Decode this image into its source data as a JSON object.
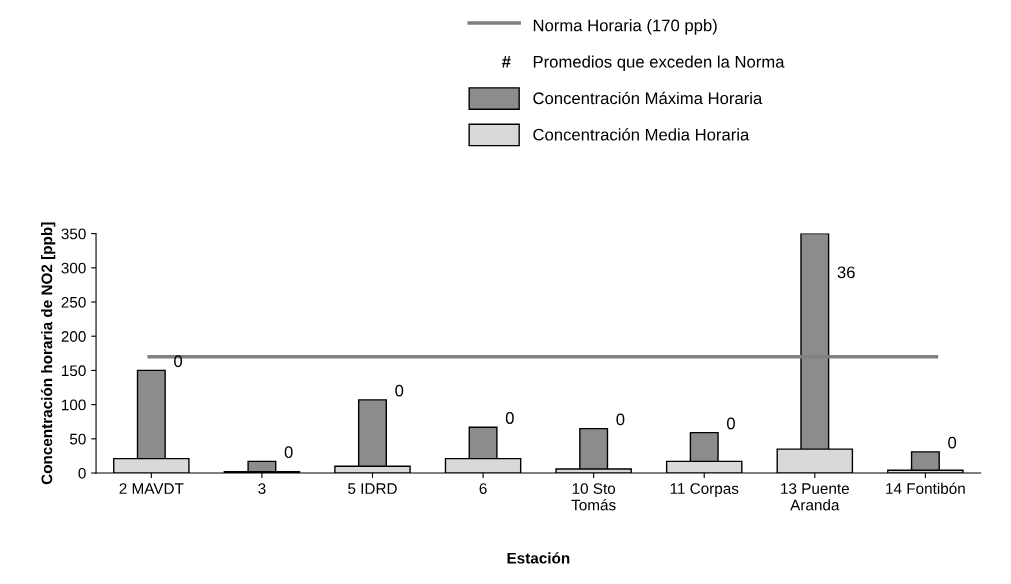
{
  "chart_data": {
    "type": "bar",
    "xlabel": "Estación",
    "ylabel": "Concentración horaria de NO2 [ppb]",
    "categories": [
      "2 MAVDT",
      "3",
      "5 IDRD",
      "6",
      "10 Sto\nTomás",
      "11 Corpas",
      "13 Puente\nAranda",
      "14 Fontibón"
    ],
    "series": [
      {
        "name": "Concentración Máxima Horaria",
        "color": "#8c8c8c",
        "values": [
          150,
          17,
          107,
          67,
          65,
          59,
          350,
          31
        ]
      },
      {
        "name": "Concentración Media Horaria",
        "color": "#d9d9d9",
        "values": [
          21,
          2,
          10,
          21,
          6,
          17,
          35,
          4
        ]
      }
    ],
    "ref_lines": [
      {
        "axis": "y",
        "value": 170,
        "label": "Norma Horaria (170 ppb)",
        "color": "#808080"
      }
    ],
    "annotations": [
      "#",
      "Promedios que exceden la Norma",
      {
        "text": "0",
        "x": "2 MAVDT",
        "y": 150
      },
      {
        "text": "0",
        "x": "3",
        "y": 17
      },
      {
        "text": "0",
        "x": "5 IDRD",
        "y": 107
      },
      {
        "text": "0",
        "x": "6",
        "y": 67
      },
      {
        "text": "0",
        "x": "10 Sto\nTomás",
        "y": 65
      },
      {
        "text": "0",
        "x": "11 Corpas",
        "y": 59
      },
      {
        "text": "36",
        "x": "13 Puente\nAranda",
        "y": 350
      },
      {
        "text": "0",
        "x": "14 Fontibón",
        "y": 31
      }
    ],
    "ylim": [
      0,
      350
    ],
    "yticks": [
      0,
      50,
      100,
      150,
      200,
      250,
      300,
      350
    ],
    "grid": false,
    "legend": "top"
  }
}
